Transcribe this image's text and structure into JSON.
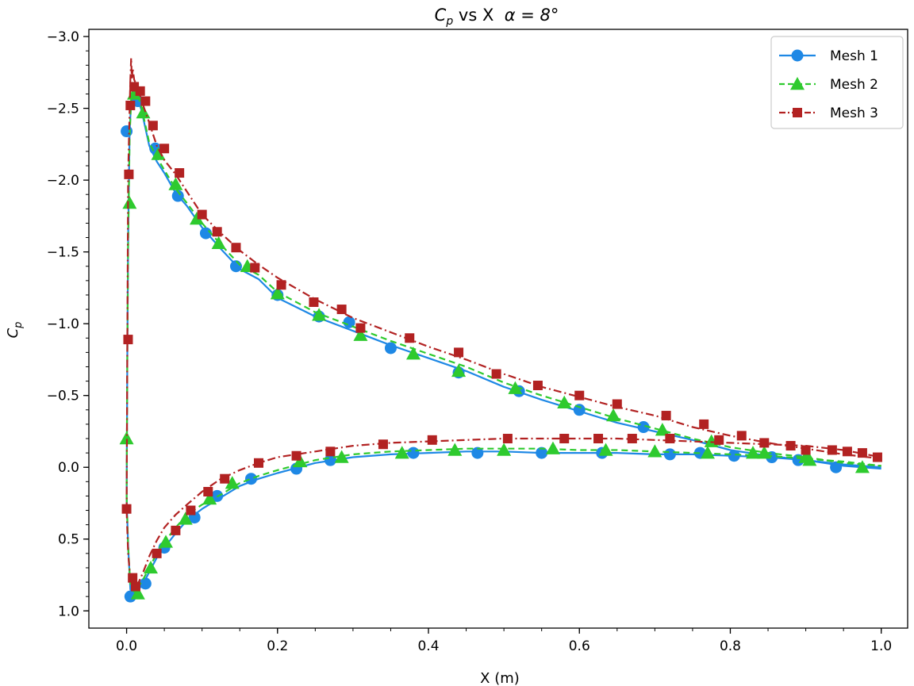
{
  "chart_data": {
    "type": "line",
    "title_var": "C",
    "title_var_sub": "p",
    "title_mid": " vs X  ",
    "title_alpha": "α = 8°",
    "xlabel": "X (m)",
    "ylabel_var": "C",
    "ylabel_sub": "p",
    "xlim": [
      -0.05,
      1.035
    ],
    "ylim": [
      1.12,
      -3.05
    ],
    "y_inverted": true,
    "x_ticks": [
      0.0,
      0.2,
      0.4,
      0.6,
      0.8,
      1.0
    ],
    "x_tick_labels": [
      "0.0",
      "0.2",
      "0.4",
      "0.6",
      "0.8",
      "1.0"
    ],
    "y_ticks": [
      -3.0,
      -2.5,
      -2.0,
      -1.5,
      -1.0,
      -0.5,
      0.0,
      0.5,
      1.0
    ],
    "y_tick_labels": [
      "−3.0",
      "−2.5",
      "−2.0",
      "−1.5",
      "−1.0",
      "−0.5",
      "0.0",
      "0.5",
      "1.0"
    ],
    "grid": false,
    "legend_position": "top-right",
    "series": [
      {
        "name": "Mesh 1",
        "color": "#1e88e5",
        "linestyle": "solid",
        "marker": "circle",
        "upper": {
          "x": [
            0.0,
            0.001,
            0.002,
            0.004,
            0.006,
            0.008,
            0.01,
            0.015,
            0.02,
            0.03,
            0.04,
            0.05,
            0.065,
            0.08,
            0.1,
            0.125,
            0.15,
            0.175,
            0.2,
            0.25,
            0.3,
            0.35,
            0.4,
            0.45,
            0.5,
            0.55,
            0.6,
            0.65,
            0.7,
            0.75,
            0.8,
            0.85,
            0.9,
            0.95,
            1.0
          ],
          "y": [
            0.21,
            -0.8,
            -1.6,
            -2.34,
            -2.55,
            -2.6,
            -2.6,
            -2.57,
            -2.48,
            -2.24,
            -2.13,
            -2.05,
            -1.91,
            -1.82,
            -1.67,
            -1.52,
            -1.38,
            -1.31,
            -1.18,
            -1.05,
            -0.95,
            -0.85,
            -0.76,
            -0.67,
            -0.56,
            -0.47,
            -0.39,
            -0.31,
            -0.25,
            -0.19,
            -0.12,
            -0.08,
            -0.05,
            -0.01,
            0.01
          ]
        },
        "lower": {
          "x": [
            0.0,
            0.002,
            0.005,
            0.008,
            0.012,
            0.016,
            0.022,
            0.03,
            0.04,
            0.05,
            0.065,
            0.08,
            0.1,
            0.125,
            0.15,
            0.175,
            0.2,
            0.25,
            0.3,
            0.35,
            0.4,
            0.45,
            0.5,
            0.55,
            0.6,
            0.65,
            0.7,
            0.75,
            0.8,
            0.85,
            0.9,
            0.95,
            1.0
          ],
          "y": [
            0.21,
            0.55,
            0.85,
            0.9,
            0.89,
            0.85,
            0.81,
            0.73,
            0.63,
            0.56,
            0.46,
            0.37,
            0.29,
            0.21,
            0.13,
            0.08,
            0.04,
            -0.03,
            -0.07,
            -0.09,
            -0.1,
            -0.11,
            -0.11,
            -0.1,
            -0.1,
            -0.1,
            -0.09,
            -0.09,
            -0.08,
            -0.07,
            -0.05,
            -0.02,
            0.0
          ]
        },
        "marker_x": [
          0.0,
          0.005,
          0.015,
          0.025,
          0.038,
          0.05,
          0.068,
          0.09,
          0.105,
          0.12,
          0.145,
          0.165,
          0.2,
          0.225,
          0.255,
          0.27,
          0.295,
          0.35,
          0.38,
          0.44,
          0.465,
          0.52,
          0.55,
          0.6,
          0.63,
          0.685,
          0.72,
          0.76,
          0.805,
          0.855,
          0.89,
          0.94
        ],
        "marker_y": [
          -2.34,
          0.9,
          -2.55,
          0.81,
          -2.22,
          0.56,
          -1.89,
          0.35,
          -1.63,
          0.2,
          -1.4,
          0.08,
          -1.2,
          0.01,
          -1.05,
          -0.05,
          -1.01,
          -0.83,
          -0.1,
          -0.66,
          -0.1,
          -0.53,
          -0.1,
          -0.4,
          -0.1,
          -0.28,
          -0.09,
          -0.1,
          -0.08,
          -0.07,
          -0.05,
          0.0
        ]
      },
      {
        "name": "Mesh 2",
        "color": "#2eca2e",
        "linestyle": "dashed",
        "marker": "triangle",
        "upper": {
          "x": [
            0.0,
            0.001,
            0.002,
            0.004,
            0.006,
            0.008,
            0.01,
            0.015,
            0.02,
            0.03,
            0.04,
            0.05,
            0.065,
            0.08,
            0.1,
            0.125,
            0.15,
            0.175,
            0.2,
            0.25,
            0.3,
            0.35,
            0.4,
            0.45,
            0.5,
            0.55,
            0.6,
            0.65,
            0.7,
            0.75,
            0.8,
            0.85,
            0.9,
            0.95,
            1.0
          ],
          "y": [
            0.2,
            -0.8,
            -1.55,
            -2.3,
            -2.56,
            -2.62,
            -2.62,
            -2.59,
            -2.5,
            -2.26,
            -2.16,
            -2.07,
            -1.94,
            -1.84,
            -1.7,
            -1.55,
            -1.41,
            -1.34,
            -1.22,
            -1.08,
            -0.98,
            -0.88,
            -0.79,
            -0.7,
            -0.59,
            -0.5,
            -0.42,
            -0.34,
            -0.27,
            -0.2,
            -0.14,
            -0.1,
            -0.07,
            -0.03,
            -0.01
          ]
        },
        "lower": {
          "x": [
            0.0,
            0.002,
            0.005,
            0.008,
            0.012,
            0.016,
            0.022,
            0.03,
            0.04,
            0.05,
            0.065,
            0.08,
            0.1,
            0.125,
            0.15,
            0.175,
            0.2,
            0.25,
            0.3,
            0.35,
            0.4,
            0.45,
            0.5,
            0.55,
            0.6,
            0.65,
            0.7,
            0.75,
            0.8,
            0.85,
            0.9,
            0.95,
            1.0
          ],
          "y": [
            0.2,
            0.55,
            0.82,
            0.86,
            0.87,
            0.83,
            0.78,
            0.7,
            0.6,
            0.52,
            0.42,
            0.33,
            0.26,
            0.19,
            0.11,
            0.06,
            0.02,
            -0.05,
            -0.09,
            -0.11,
            -0.12,
            -0.13,
            -0.13,
            -0.13,
            -0.12,
            -0.12,
            -0.11,
            -0.1,
            -0.09,
            -0.08,
            -0.06,
            -0.04,
            -0.01
          ]
        },
        "marker_x": [
          0.0,
          0.004,
          0.01,
          0.015,
          0.022,
          0.032,
          0.042,
          0.052,
          0.065,
          0.078,
          0.093,
          0.11,
          0.122,
          0.14,
          0.16,
          0.2,
          0.23,
          0.255,
          0.285,
          0.31,
          0.365,
          0.38,
          0.435,
          0.44,
          0.5,
          0.515,
          0.565,
          0.58,
          0.635,
          0.645,
          0.7,
          0.71,
          0.77,
          0.775,
          0.83,
          0.845,
          0.9,
          0.905,
          0.975
        ],
        "marker_y": [
          -0.2,
          -1.84,
          -2.6,
          0.88,
          -2.47,
          0.7,
          -2.18,
          0.52,
          -1.97,
          0.36,
          -1.73,
          0.22,
          -1.56,
          0.11,
          -1.4,
          -1.21,
          -0.04,
          -1.06,
          -0.07,
          -0.92,
          -0.1,
          -0.79,
          -0.12,
          -0.67,
          -0.12,
          -0.55,
          -0.13,
          -0.45,
          -0.12,
          -0.36,
          -0.11,
          -0.26,
          -0.1,
          -0.18,
          -0.1,
          -0.1,
          -0.07,
          -0.05,
          0.0
        ]
      },
      {
        "name": "Mesh 3",
        "color": "#b22222",
        "linestyle": "dashdot",
        "marker": "square",
        "upper": {
          "x": [
            0.0,
            0.001,
            0.002,
            0.004,
            0.005,
            0.006,
            0.007,
            0.008,
            0.01,
            0.015,
            0.02,
            0.03,
            0.04,
            0.05,
            0.065,
            0.08,
            0.1,
            0.125,
            0.15,
            0.175,
            0.2,
            0.25,
            0.3,
            0.35,
            0.4,
            0.45,
            0.5,
            0.55,
            0.6,
            0.65,
            0.7,
            0.75,
            0.8,
            0.85,
            0.9,
            0.95,
            1.0
          ],
          "y": [
            0.3,
            -0.88,
            -2.03,
            -2.5,
            -2.7,
            -2.85,
            -2.7,
            -2.78,
            -2.7,
            -2.64,
            -2.55,
            -2.4,
            -2.24,
            -2.14,
            -2.04,
            -1.92,
            -1.76,
            -1.63,
            -1.51,
            -1.41,
            -1.32,
            -1.17,
            -1.04,
            -0.94,
            -0.84,
            -0.75,
            -0.65,
            -0.56,
            -0.49,
            -0.42,
            -0.36,
            -0.28,
            -0.22,
            -0.17,
            -0.13,
            -0.09,
            -0.06
          ]
        },
        "lower": {
          "x": [
            0.0,
            0.002,
            0.005,
            0.008,
            0.012,
            0.016,
            0.022,
            0.03,
            0.04,
            0.05,
            0.065,
            0.08,
            0.1,
            0.125,
            0.15,
            0.175,
            0.2,
            0.25,
            0.3,
            0.35,
            0.4,
            0.45,
            0.5,
            0.55,
            0.6,
            0.65,
            0.7,
            0.75,
            0.8,
            0.85,
            0.9,
            0.95,
            1.0
          ],
          "y": [
            0.3,
            0.6,
            0.78,
            0.82,
            0.83,
            0.8,
            0.73,
            0.62,
            0.51,
            0.42,
            0.33,
            0.26,
            0.17,
            0.08,
            0.02,
            -0.03,
            -0.07,
            -0.11,
            -0.15,
            -0.17,
            -0.18,
            -0.19,
            -0.2,
            -0.2,
            -0.2,
            -0.2,
            -0.19,
            -0.18,
            -0.17,
            -0.16,
            -0.15,
            -0.12,
            -0.07
          ]
        },
        "marker_x": [
          0.0,
          0.002,
          0.003,
          0.005,
          0.008,
          0.01,
          0.012,
          0.018,
          0.025,
          0.035,
          0.04,
          0.05,
          0.065,
          0.07,
          0.085,
          0.1,
          0.108,
          0.12,
          0.13,
          0.145,
          0.17,
          0.175,
          0.205,
          0.225,
          0.248,
          0.27,
          0.285,
          0.31,
          0.34,
          0.375,
          0.405,
          0.44,
          0.49,
          0.505,
          0.545,
          0.58,
          0.6,
          0.625,
          0.65,
          0.67,
          0.715,
          0.72,
          0.765,
          0.785,
          0.815,
          0.845,
          0.88,
          0.9,
          0.935,
          0.955,
          0.975,
          0.995
        ],
        "marker_y": [
          0.29,
          -0.89,
          -2.04,
          -2.52,
          0.77,
          -2.65,
          0.83,
          -2.62,
          -2.55,
          -2.38,
          0.6,
          -2.22,
          0.44,
          -2.05,
          0.3,
          -1.76,
          0.17,
          -1.64,
          0.08,
          -1.53,
          -1.39,
          -0.03,
          -1.27,
          -0.08,
          -1.15,
          -0.11,
          -1.1,
          -0.97,
          -0.16,
          -0.9,
          -0.19,
          -0.8,
          -0.65,
          -0.2,
          -0.57,
          -0.2,
          -0.5,
          -0.2,
          -0.44,
          -0.2,
          -0.36,
          -0.2,
          -0.3,
          -0.19,
          -0.22,
          -0.17,
          -0.15,
          -0.12,
          -0.12,
          -0.11,
          -0.1,
          -0.07
        ]
      }
    ]
  }
}
